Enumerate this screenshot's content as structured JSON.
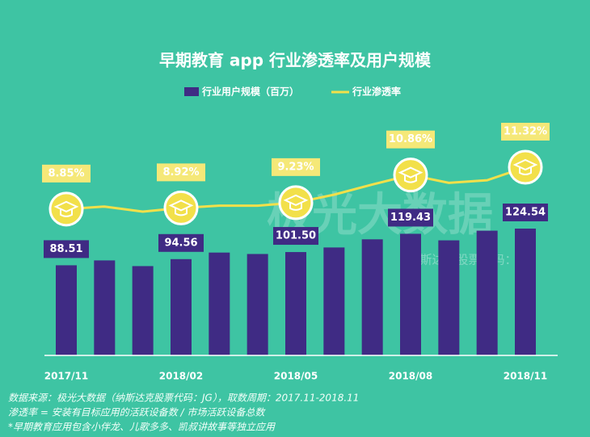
{
  "chart_data": {
    "type": "bar_line",
    "title": "早期教育 app 行业渗透率及用户规模",
    "categories": [
      "2017/11",
      null,
      null,
      "2018/02",
      null,
      null,
      "2018/05",
      null,
      null,
      "2018/08",
      null,
      null,
      "2018/11"
    ],
    "series": [
      {
        "name": "行业用户规模（百万）",
        "type": "bar",
        "color": "#3f2b84",
        "values": [
          88.51,
          93.3,
          87.7,
          94.56,
          101,
          99.6,
          101.5,
          106,
          114,
          119.43,
          113,
          122.5,
          124.54
        ],
        "value_labels": [
          "88.51",
          null,
          null,
          "94.56",
          null,
          null,
          "101.50",
          null,
          null,
          "119.43",
          null,
          null,
          "124.54"
        ]
      },
      {
        "name": "行业渗透率",
        "type": "line",
        "axis": "y2",
        "color": "#f2e04a",
        "values": [
          8.85,
          9.0,
          8.7,
          8.92,
          9.05,
          9.05,
          9.23,
          9.7,
          10.3,
          10.86,
          10.4,
          10.55,
          11.32
        ],
        "value_labels": [
          "8.85%",
          null,
          null,
          "8.92%",
          null,
          null,
          "9.23%",
          null,
          null,
          "10.86%",
          null,
          null,
          "11.32%"
        ]
      }
    ],
    "watermark": "极光大数据",
    "watermark_sub": "纳斯达克股票代码：JG",
    "notes": [
      "数据来源：极光大数据（纳斯达克股票代码：JG），取数周期：2017.11-2018.11",
      "渗透率 = 安装有目标应用的活跃设备数 / 市场活跃设备总数",
      "*早期教育应用包含小伴龙、儿歌多多、凯叔讲故事等独立应用"
    ]
  }
}
